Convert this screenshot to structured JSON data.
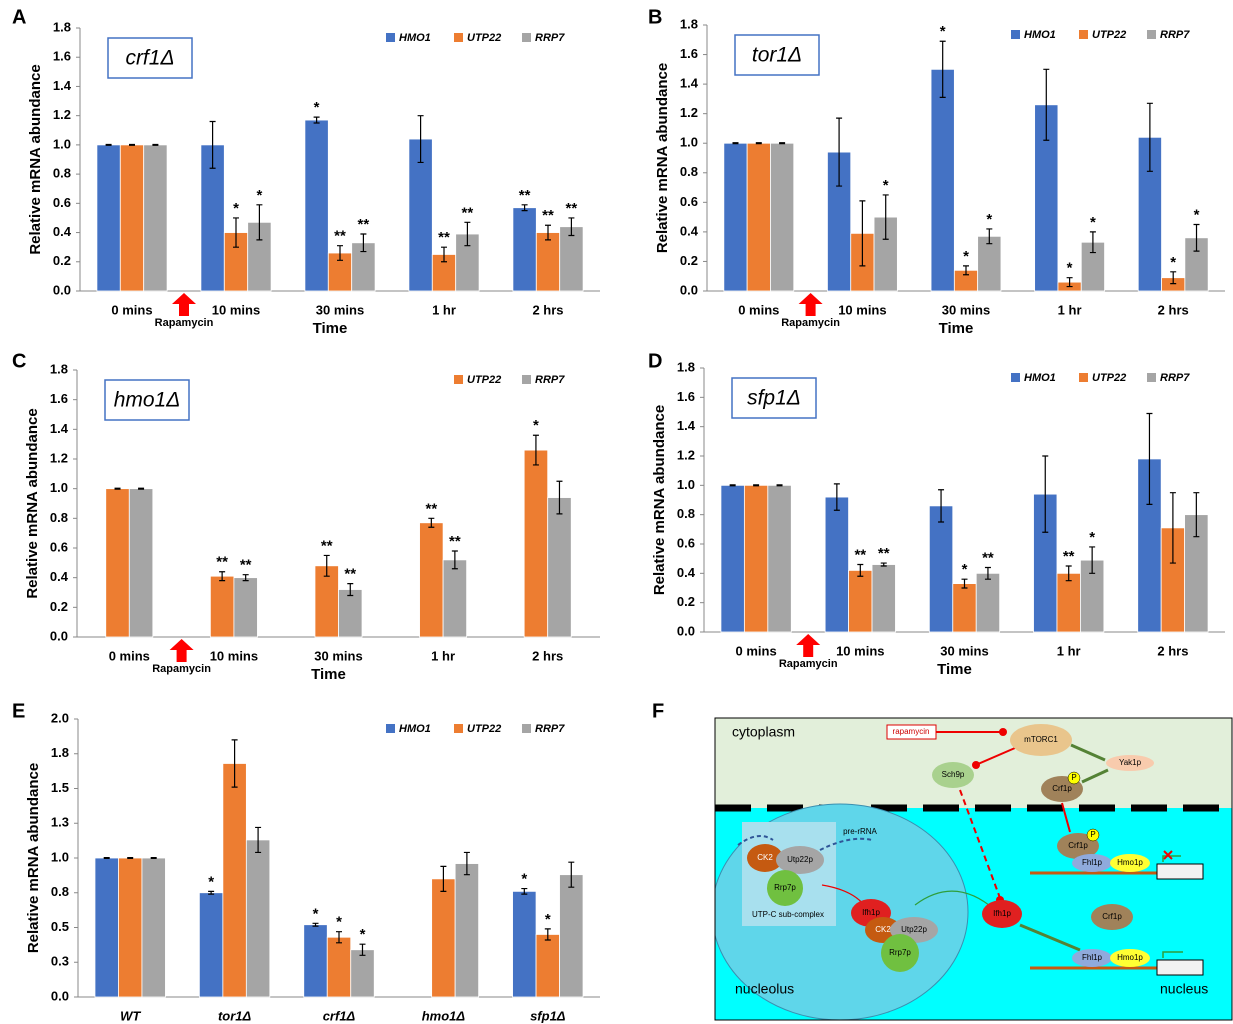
{
  "chart_data": [
    {
      "type": "bar",
      "panel": "A",
      "inset_label": "crf1Δ",
      "ylabel": "Relative mRNA abundance",
      "xlabel": "Time",
      "annotation": "Rapamycin",
      "categories": [
        "0 mins",
        "10 mins",
        "30 mins",
        "1 hr",
        "2 hrs"
      ],
      "ylim": [
        0,
        1.8
      ],
      "yticks": [
        {
          "value": 0,
          "label": "0.0"
        },
        0.2,
        0.4,
        0.6,
        0.8,
        {
          "value": 1,
          "label": "1.0"
        },
        1.2,
        1.4,
        1.6,
        1.8
      ],
      "grid": false,
      "legend": "top-right",
      "series": [
        {
          "name": "HMO1",
          "color": "#4472c4",
          "values": [
            1.0,
            1.0,
            1.17,
            1.04,
            0.57
          ],
          "errors": [
            0.003,
            0.16,
            0.02,
            0.16,
            0.02
          ],
          "significance": [
            null,
            null,
            "*",
            null,
            "**"
          ]
        },
        {
          "name": "UTP22",
          "color": "#ed7d31",
          "values": [
            1.0,
            0.4,
            0.26,
            0.25,
            0.4
          ],
          "errors": [
            0.003,
            0.1,
            0.05,
            0.05,
            0.05
          ],
          "significance": [
            null,
            "*",
            "**",
            "**",
            "**"
          ]
        },
        {
          "name": "RRP7",
          "color": "#a5a5a5",
          "values": [
            1.0,
            0.47,
            0.33,
            0.39,
            0.44
          ],
          "errors": [
            0.003,
            0.12,
            0.06,
            0.08,
            0.06
          ],
          "significance": [
            null,
            "*",
            "**",
            "**",
            "**"
          ]
        }
      ]
    },
    {
      "type": "bar",
      "panel": "B",
      "inset_label": "tor1Δ",
      "ylabel": "Relative mRNA abundance",
      "xlabel": "Time",
      "annotation": "Rapamycin",
      "categories": [
        "0 mins",
        "10 mins",
        "30 mins",
        "1 hr",
        "2 hrs"
      ],
      "ylim": [
        0,
        1.8
      ],
      "yticks": [
        {
          "value": 0,
          "label": "0.0"
        },
        0.2,
        0.4,
        0.6,
        0.8,
        {
          "value": 1,
          "label": "1.0"
        },
        1.2,
        1.4,
        1.6,
        1.8
      ],
      "grid": false,
      "legend": "top-right",
      "series": [
        {
          "name": "HMO1",
          "color": "#4472c4",
          "values": [
            1.0,
            0.94,
            1.5,
            1.26,
            1.04
          ],
          "errors": [
            0.003,
            0.23,
            0.19,
            0.24,
            0.23
          ],
          "significance": [
            null,
            null,
            "*",
            null,
            null
          ]
        },
        {
          "name": "UTP22",
          "color": "#ed7d31",
          "values": [
            1.0,
            0.39,
            0.14,
            0.06,
            0.09
          ],
          "errors": [
            0.003,
            0.22,
            0.03,
            0.03,
            0.04
          ],
          "significance": [
            null,
            null,
            "*",
            "*",
            "*"
          ]
        },
        {
          "name": "RRP7",
          "color": "#a5a5a5",
          "values": [
            1.0,
            0.5,
            0.37,
            0.33,
            0.36
          ],
          "errors": [
            0.003,
            0.15,
            0.05,
            0.07,
            0.09
          ],
          "significance": [
            null,
            "*",
            "*",
            "*",
            "*"
          ]
        }
      ]
    },
    {
      "type": "bar",
      "panel": "C",
      "inset_label": "hmo1Δ",
      "ylabel": "Relative mRNA abundance",
      "xlabel": "Time",
      "annotation": "Rapamycin",
      "categories": [
        "0 mins",
        "10 mins",
        "30 mins",
        "1 hr",
        "2 hrs"
      ],
      "ylim": [
        0,
        1.8
      ],
      "yticks": [
        {
          "value": 0,
          "label": "0.0"
        },
        0.2,
        0.4,
        0.6,
        0.8,
        {
          "value": 1,
          "label": "1.0"
        },
        1.2,
        1.4,
        1.6,
        1.8
      ],
      "grid": false,
      "legend": "top-right",
      "series": [
        {
          "name": "UTP22",
          "color": "#ed7d31",
          "values": [
            1.0,
            0.41,
            0.48,
            0.77,
            1.26
          ],
          "errors": [
            0.003,
            0.03,
            0.07,
            0.03,
            0.1
          ],
          "significance": [
            null,
            "**",
            "**",
            "**",
            "*"
          ]
        },
        {
          "name": "RRP7",
          "color": "#a5a5a5",
          "values": [
            1.0,
            0.4,
            0.32,
            0.52,
            0.94
          ],
          "errors": [
            0.003,
            0.02,
            0.04,
            0.06,
            0.11
          ],
          "significance": [
            null,
            "**",
            "**",
            "**",
            null
          ]
        }
      ]
    },
    {
      "type": "bar",
      "panel": "D",
      "inset_label": "sfp1Δ",
      "ylabel": "Relative mRNA abundance",
      "xlabel": "Time",
      "annotation": "Rapamycin",
      "categories": [
        "0 mins",
        "10 mins",
        "30 mins",
        "1 hr",
        "2 hrs"
      ],
      "ylim": [
        0,
        1.8
      ],
      "yticks": [
        {
          "value": 0,
          "label": "0.0"
        },
        0.2,
        0.4,
        0.6,
        0.8,
        {
          "value": 1,
          "label": "1.0"
        },
        1.2,
        1.4,
        1.6,
        1.8
      ],
      "grid": false,
      "legend": "top-right",
      "series": [
        {
          "name": "HMO1",
          "color": "#4472c4",
          "values": [
            1.0,
            0.92,
            0.86,
            0.94,
            1.18
          ],
          "errors": [
            0.003,
            0.09,
            0.11,
            0.26,
            0.31
          ],
          "significance": [
            null,
            null,
            null,
            null,
            null
          ]
        },
        {
          "name": "UTP22",
          "color": "#ed7d31",
          "values": [
            1.0,
            0.42,
            0.33,
            0.4,
            0.71
          ],
          "errors": [
            0.003,
            0.04,
            0.03,
            0.05,
            0.24
          ],
          "significance": [
            null,
            "**",
            "*",
            "**",
            null
          ]
        },
        {
          "name": "RRP7",
          "color": "#a5a5a5",
          "values": [
            1.0,
            0.46,
            0.4,
            0.49,
            0.8
          ],
          "errors": [
            0.003,
            0.01,
            0.04,
            0.09,
            0.15
          ],
          "significance": [
            null,
            "**",
            "**",
            "*",
            null
          ]
        }
      ]
    },
    {
      "type": "bar",
      "panel": "E",
      "ylabel": "Relative mRNA abundance",
      "categories": [
        "WT",
        "tor1Δ",
        "crf1Δ",
        "hmo1Δ",
        "sfp1Δ"
      ],
      "ylim": [
        0,
        2
      ],
      "yticks": [
        {
          "value": 0,
          "label": "0.0"
        },
        {
          "value": 0.25,
          "label": "0.3"
        },
        0.5,
        {
          "value": 0.75,
          "label": "0.8"
        },
        {
          "value": 1,
          "label": "1.0"
        },
        {
          "value": 1.25,
          "label": "1.3"
        },
        1.5,
        {
          "value": 1.75,
          "label": "1.8"
        },
        {
          "value": 2,
          "label": "2.0"
        }
      ],
      "grid": false,
      "legend": "top-right",
      "series": [
        {
          "name": "HMO1",
          "color": "#4472c4",
          "values": [
            1.0,
            0.75,
            0.52,
            null,
            0.76
          ],
          "errors": [
            0.003,
            0.01,
            0.01,
            null,
            0.02
          ],
          "significance": [
            null,
            "*",
            "*",
            null,
            "*"
          ]
        },
        {
          "name": "UTP22",
          "color": "#ed7d31",
          "values": [
            1.0,
            1.68,
            0.43,
            0.85,
            0.45
          ],
          "errors": [
            0.003,
            0.17,
            0.04,
            0.09,
            0.04
          ],
          "significance": [
            null,
            null,
            "*",
            null,
            "*"
          ]
        },
        {
          "name": "RRP7",
          "color": "#a5a5a5",
          "values": [
            1.0,
            1.13,
            0.34,
            0.96,
            0.88
          ],
          "errors": [
            0.003,
            0.09,
            0.04,
            0.08,
            0.09
          ],
          "significance": [
            null,
            null,
            "*",
            null,
            null
          ]
        }
      ]
    }
  ],
  "diagram": {
    "panel": "F",
    "compartments": [
      "cytoplasm",
      "nucleolus",
      "nucleus"
    ],
    "inhibitor": "rapamycin",
    "rna": "pre-rRNA",
    "complex": "UTP-C sub-complex",
    "proteins": [
      "mTORC1",
      "Yak1p",
      "Sch9p",
      "Crf1p",
      "P",
      "Crf1p",
      "P",
      "Fhl1p",
      "Hmo1p",
      "CK2",
      "Utp22p",
      "Rrp7p",
      "Ifh1p",
      "CK2",
      "Utp22p",
      "Rrp7p",
      "Ifh1p",
      "Crf1p",
      "Fhl1p",
      "Hmo1p"
    ]
  }
}
